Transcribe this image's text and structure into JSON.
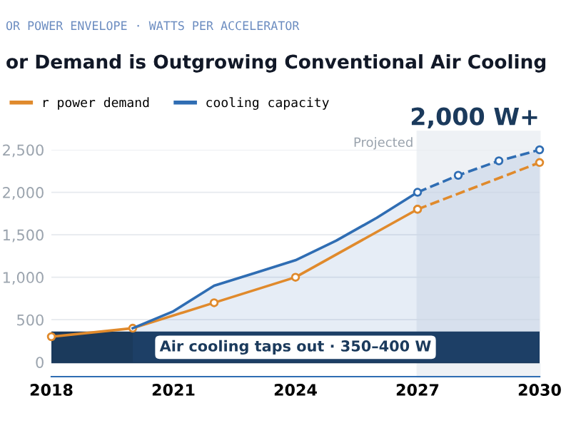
{
  "chart_data": {
    "type": "line",
    "subtitle": "OR POWER ENVELOPE · WATTS PER ACCELERATOR",
    "title": "or Demand is Outgrowing Conventional Air Cooling",
    "series": [
      {
        "name": "r power demand",
        "color": "#e08a2c",
        "marker": "circle",
        "line_style": "solid",
        "x": [
          2018,
          2020,
          2022,
          2024,
          2027
        ],
        "values": [
          300,
          400,
          700,
          1000,
          1800
        ]
      },
      {
        "color": "#e08a2c",
        "marker": "circle",
        "line_style": "dashed",
        "x": [
          2027,
          2030
        ],
        "values": [
          1800,
          2350
        ]
      },
      {
        "name": "cooling capacity",
        "type": "area",
        "color": "#2f6db3",
        "marker": "none",
        "line_style": "solid",
        "x": [
          2020,
          2021,
          2022,
          2023,
          2024,
          2025,
          2026,
          2027
        ],
        "values": [
          400,
          600,
          900,
          1050,
          1200,
          1430,
          1700,
          2000
        ]
      },
      {
        "type": "area",
        "color": "#2f6db3",
        "marker": "circle",
        "line_style": "dashed",
        "x": [
          2027,
          2028,
          2029,
          2030
        ],
        "values": [
          2000,
          2200,
          2370,
          2500
        ]
      }
    ],
    "xlim": [
      2018,
      2030
    ],
    "xticks": [
      2018,
      2021,
      2024,
      2027,
      2030
    ],
    "ylim": [
      -170,
      2500
    ],
    "yticks": [
      0,
      {
        "value": 500,
        "label": "500"
      },
      {
        "value": 1000,
        "label": "1,000"
      },
      {
        "value": 1500,
        "label": "1,500"
      },
      {
        "value": 2000,
        "label": "2,000"
      },
      {
        "value": 2500,
        "label": "2,500"
      }
    ],
    "bands": [
      {
        "axis": "y",
        "from": 0,
        "to": 350,
        "label": "Air cooling taps out · 350–400 W",
        "color": "#1b3a5c"
      },
      {
        "axis": "x",
        "from": 2027,
        "to": 2030,
        "label": "Projected",
        "color": "#eef1f5"
      }
    ],
    "annotations": [
      {
        "text": "2,000 W+",
        "x": 2030,
        "y": 2500
      }
    ],
    "grid": "y",
    "legend": "top left"
  }
}
